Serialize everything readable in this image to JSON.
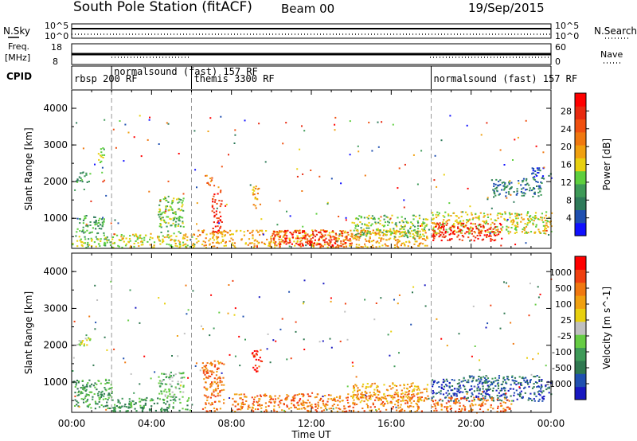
{
  "header": {
    "station": "South Pole Station (fitACF)",
    "beam": "Beam 00",
    "date": "19/Sep/2015"
  },
  "panels": {
    "nsky_label": "N.Sky",
    "nsearch_label": "N.Search",
    "freq_label_1": "Freq.",
    "freq_label_2": "[MHz]",
    "nave_label": "Nave",
    "cpid_label": "CPID",
    "nsky_ticks": [
      "10^5",
      "10^0"
    ],
    "nsearch_ticks": [
      "10^5",
      "10^0"
    ],
    "freq_ticks": [
      "18",
      "8"
    ],
    "nave_ticks": [
      "60",
      "0"
    ]
  },
  "cpid_segments": [
    {
      "start": 0,
      "end": 2,
      "label": "rbsp 200 RF"
    },
    {
      "start": 2,
      "end": 6,
      "label": "normalsound (fast) 157 RF"
    },
    {
      "start": 6,
      "end": 18,
      "label": "themis 3300 RF"
    },
    {
      "start": 18,
      "end": 24,
      "label": "normalsound (fast) 157 RF"
    }
  ],
  "chart_data": [
    {
      "type": "heatmap",
      "title": "",
      "ylabel": "Slant Range [km]",
      "xlabel": "",
      "xlim": [
        0,
        24
      ],
      "ylim": [
        180,
        4500
      ],
      "yticks": [
        1000,
        2000,
        3000,
        4000
      ],
      "colorbar": {
        "label": "Power [dB]",
        "ticks": [
          "4",
          "8",
          "12",
          "16",
          "20",
          "24",
          "28"
        ],
        "colors": [
          "#1010ff",
          "#1f4fb0",
          "#2e7a5a",
          "#3e9a58",
          "#5ecf3e",
          "#e8d010",
          "#f0a010",
          "#f07810",
          "#f05010",
          "#e82a10",
          "#ff0000"
        ]
      },
      "regions": [
        {
          "t0": 0.0,
          "t1": 2.0,
          "r0": 220,
          "r1": 560,
          "level": 4
        },
        {
          "t0": 0.2,
          "t1": 1.6,
          "r0": 600,
          "r1": 1100,
          "level": 3
        },
        {
          "t0": 0.2,
          "t1": 0.9,
          "r0": 2000,
          "r1": 2300,
          "level": 3
        },
        {
          "t0": 1.3,
          "t1": 1.6,
          "r0": 2500,
          "r1": 3000,
          "level": 4
        },
        {
          "t0": 2.0,
          "t1": 6.0,
          "r0": 220,
          "r1": 600,
          "level": 5
        },
        {
          "t0": 4.3,
          "t1": 5.6,
          "r0": 600,
          "r1": 1600,
          "level": 4
        },
        {
          "t0": 7.0,
          "t1": 7.5,
          "r0": 600,
          "r1": 1800,
          "level": 9
        },
        {
          "t0": 6.6,
          "t1": 7.0,
          "r0": 1900,
          "r1": 2200,
          "level": 7
        },
        {
          "t0": 9.0,
          "t1": 9.4,
          "r0": 1300,
          "r1": 1900,
          "level": 6
        },
        {
          "t0": 6.0,
          "t1": 17.8,
          "r0": 220,
          "r1": 700,
          "level": 6
        },
        {
          "t0": 10.0,
          "t1": 14.0,
          "r0": 250,
          "r1": 700,
          "level": 9
        },
        {
          "t0": 14.0,
          "t1": 17.8,
          "r0": 500,
          "r1": 1100,
          "level": 4
        },
        {
          "t0": 18.0,
          "t1": 24.0,
          "r0": 600,
          "r1": 1200,
          "level": 5
        },
        {
          "t0": 18.0,
          "t1": 21.5,
          "r0": 400,
          "r1": 900,
          "level": 9
        },
        {
          "t0": 21.0,
          "t1": 23.5,
          "r0": 1600,
          "r1": 2100,
          "level": 2
        },
        {
          "t0": 23.0,
          "t1": 24.0,
          "r0": 2100,
          "r1": 2400,
          "level": 1
        }
      ]
    },
    {
      "type": "heatmap",
      "title": "",
      "ylabel": "Slant Range [km]",
      "xlabel": "Time UT",
      "xlim": [
        0,
        24
      ],
      "ylim": [
        180,
        4500
      ],
      "yticks": [
        1000,
        2000,
        3000,
        4000
      ],
      "xticks": [
        "00:00",
        "04:00",
        "08:00",
        "12:00",
        "16:00",
        "20:00",
        "00:00"
      ],
      "colorbar": {
        "label": "Velocity [m s^-1]",
        "ticks": [
          "1000",
          "500",
          "100",
          "25",
          "-25",
          "-100",
          "-500",
          "-1000"
        ],
        "colors": [
          "#1818c0",
          "#2050b0",
          "#2f7850",
          "#3e9a58",
          "#66cc44",
          "#c0c0c0",
          "#e8d010",
          "#f0a010",
          "#f07810",
          "#f04010",
          "#ff0000"
        ]
      },
      "regions": [
        {
          "t0": 0.0,
          "t1": 2.0,
          "r0": 300,
          "r1": 1100,
          "level": 3
        },
        {
          "t0": 0.2,
          "t1": 0.9,
          "r0": 2000,
          "r1": 2300,
          "level": 5
        },
        {
          "t0": 2.0,
          "t1": 6.0,
          "r0": 220,
          "r1": 600,
          "level": 3
        },
        {
          "t0": 4.3,
          "t1": 5.6,
          "r0": 600,
          "r1": 1300,
          "level": 4
        },
        {
          "t0": 6.5,
          "t1": 7.6,
          "r0": 220,
          "r1": 1600,
          "level": 8
        },
        {
          "t0": 9.0,
          "t1": 9.5,
          "r0": 1300,
          "r1": 1900,
          "level": 9
        },
        {
          "t0": 8.0,
          "t1": 17.5,
          "r0": 220,
          "r1": 700,
          "level": 8
        },
        {
          "t0": 14.0,
          "t1": 17.8,
          "r0": 500,
          "r1": 1000,
          "level": 7
        },
        {
          "t0": 18.0,
          "t1": 24.0,
          "r0": 500,
          "r1": 1100,
          "level": 1
        },
        {
          "t0": 18.0,
          "t1": 22.0,
          "r0": 220,
          "r1": 600,
          "level": 8
        },
        {
          "t0": 19.5,
          "t1": 23.5,
          "r0": 1000,
          "r1": 1200,
          "level": 2
        }
      ]
    }
  ]
}
